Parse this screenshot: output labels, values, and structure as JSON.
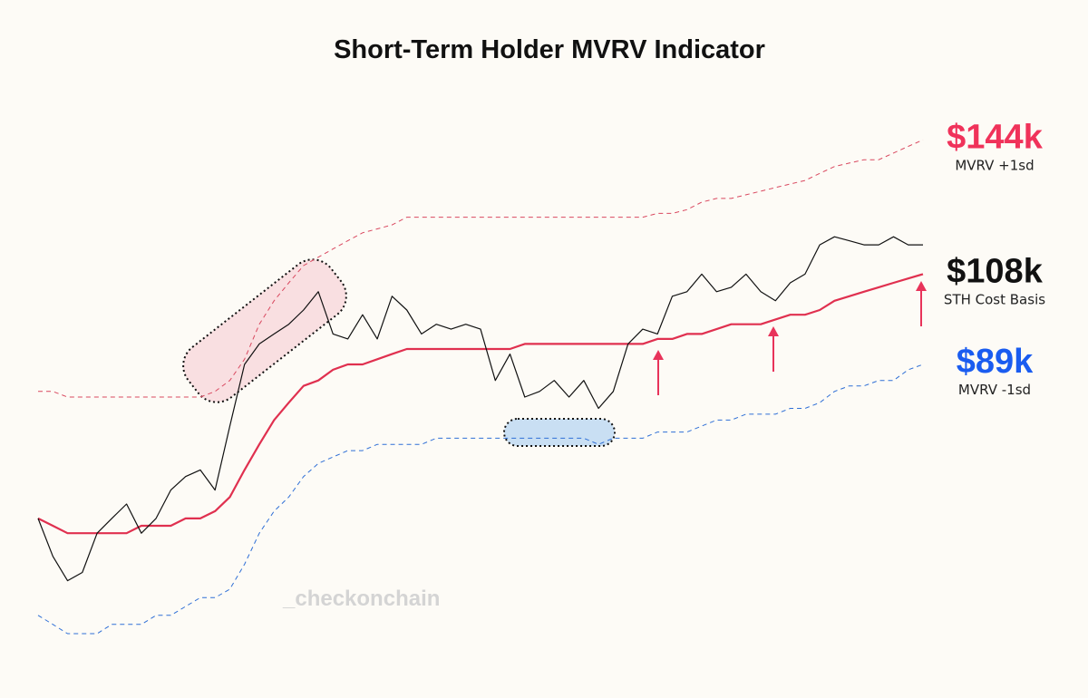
{
  "chart_data": {
    "type": "line",
    "title": "Short-Term Holder MVRV Indicator",
    "watermark": "_checkonchain",
    "log_y": true,
    "ylim": [
      48,
      160
    ],
    "series": [
      {
        "color": "#111111",
        "width": 1.2,
        "dashed": false,
        "values": [
          64,
          59,
          56,
          57,
          62,
          64,
          66,
          62,
          64,
          68,
          70,
          71,
          68,
          78,
          89,
          93,
          95,
          97,
          100,
          104,
          95,
          94,
          99,
          94,
          103,
          100,
          95,
          97,
          96,
          97,
          96,
          86,
          91,
          83,
          84,
          86,
          83,
          86,
          81,
          84,
          93,
          96,
          95,
          103,
          104,
          108,
          104,
          105,
          108,
          104,
          102,
          106,
          108,
          115,
          117,
          116,
          115,
          115,
          117,
          115,
          115
        ]
      },
      {
        "name": "STH Cost Basis",
        "end_label": "$108k",
        "label_color": "#111111",
        "color": "#e0304f",
        "width": 2.2,
        "dashed": false,
        "values": [
          64,
          63,
          62,
          62,
          62,
          62,
          62,
          63,
          63,
          63,
          64,
          64,
          65,
          67,
          71,
          75,
          79,
          82,
          85,
          86,
          88,
          89,
          89,
          90,
          91,
          92,
          92,
          92,
          92,
          92,
          92,
          92,
          92,
          93,
          93,
          93,
          93,
          93,
          93,
          93,
          93,
          93,
          94,
          94,
          95,
          95,
          96,
          97,
          97,
          97,
          98,
          99,
          99,
          100,
          102,
          103,
          104,
          105,
          106,
          107,
          108
        ]
      },
      {
        "name": "MVRV +1sd",
        "end_label": "$144k",
        "label_color": "#f0325a",
        "color": "#d9485f",
        "width": 1,
        "dashed": true,
        "values": [
          84,
          84,
          83,
          83,
          83,
          83,
          83,
          83,
          83,
          83,
          83,
          83,
          84,
          86,
          90,
          97,
          102,
          106,
          110,
          112,
          114,
          116,
          118,
          119,
          120,
          122,
          122,
          122,
          122,
          122,
          122,
          122,
          122,
          122,
          122,
          122,
          122,
          122,
          122,
          122,
          122,
          122,
          123,
          123,
          124,
          126,
          127,
          127,
          128,
          129,
          130,
          131,
          132,
          134,
          136,
          137,
          138,
          138,
          140,
          142,
          144
        ]
      },
      {
        "name": "MVRV -1sd",
        "end_label": "$89k",
        "label_color": "#1a5cf0",
        "color": "#2f6fd6",
        "width": 1,
        "dashed": true,
        "values": [
          52,
          51,
          50,
          50,
          50,
          51,
          51,
          51,
          52,
          52,
          53,
          54,
          54,
          55,
          58,
          62,
          65,
          67,
          70,
          72,
          73,
          74,
          74,
          75,
          75,
          75,
          75,
          76,
          76,
          76,
          76,
          76,
          76,
          76,
          76,
          76,
          76,
          76,
          75,
          76,
          76,
          76,
          77,
          77,
          77,
          78,
          79,
          79,
          80,
          80,
          80,
          81,
          81,
          82,
          84,
          85,
          85,
          86,
          86,
          88,
          89
        ]
      }
    ]
  }
}
